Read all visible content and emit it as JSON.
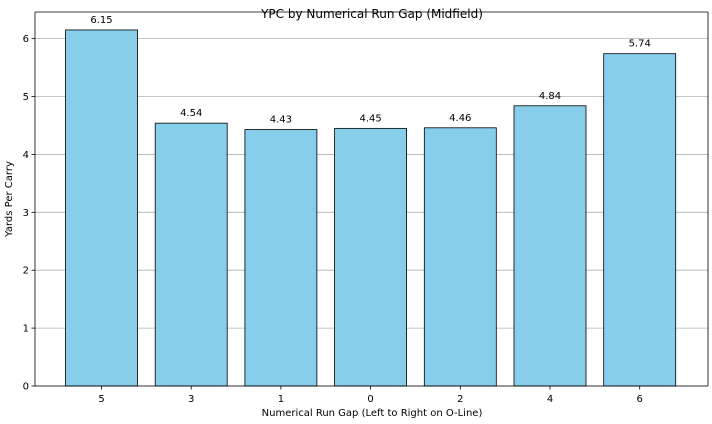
{
  "chart_data": {
    "type": "bar",
    "title": "YPC by Numerical Run Gap (Midfield)",
    "xlabel": "Numerical Run Gap (Left to Right on O-Line)",
    "ylabel": "Yards Per Carry",
    "categories": [
      "5",
      "3",
      "1",
      "0",
      "2",
      "4",
      "6"
    ],
    "values": [
      6.15,
      4.54,
      4.43,
      4.45,
      4.46,
      4.84,
      5.74
    ],
    "data_labels": [
      "6.15",
      "4.54",
      "4.43",
      "4.45",
      "4.46",
      "4.84",
      "5.74"
    ],
    "ylim": [
      0,
      6.46
    ],
    "yticks": [
      0,
      1,
      2,
      3,
      4,
      5,
      6
    ],
    "grid": "y-axis major",
    "bar_color": "#87ceeb",
    "edge_color": "#000000",
    "grid_color": "#b0b0b0"
  }
}
